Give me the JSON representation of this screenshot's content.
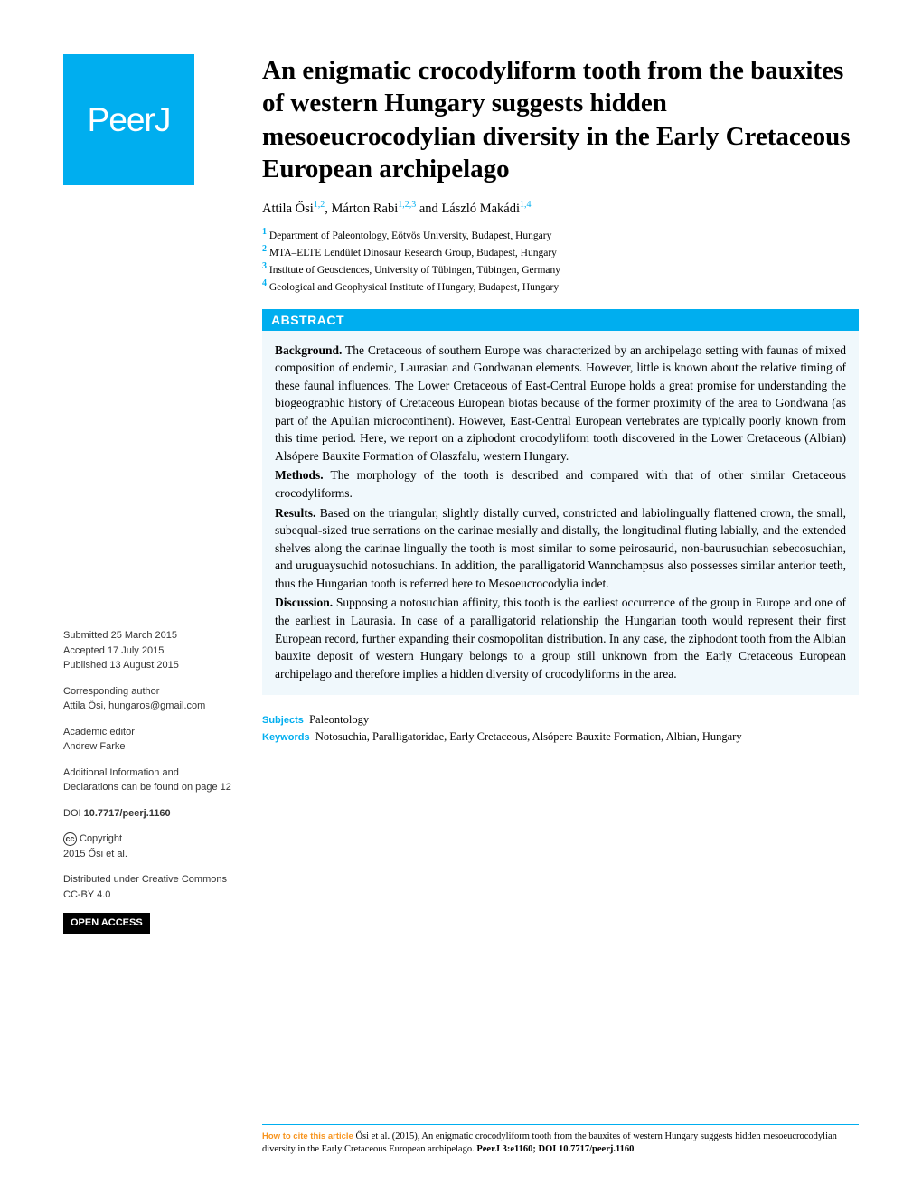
{
  "logo": "PeerJ",
  "title": "An enigmatic crocodyliform tooth from the bauxites of western Hungary suggests hidden mesoeucrocodylian diversity in the Early Cretaceous European archipelago",
  "authors": [
    {
      "name": "Attila Ősi",
      "aff": "1,2"
    },
    {
      "name": "Márton Rabi",
      "aff": "1,2,3"
    },
    {
      "name": "László Makádi",
      "aff": "1,4"
    }
  ],
  "affiliations": [
    {
      "num": "1",
      "text": "Department of Paleontology, Eötvös University, Budapest, Hungary"
    },
    {
      "num": "2",
      "text": "MTA–ELTE Lendület Dinosaur Research Group, Budapest, Hungary"
    },
    {
      "num": "3",
      "text": "Institute of Geosciences, University of Tübingen, Tübingen, Germany"
    },
    {
      "num": "4",
      "text": "Geological and Geophysical Institute of Hungary, Budapest, Hungary"
    }
  ],
  "abstract_header": "ABSTRACT",
  "abstract": {
    "background_label": "Background.",
    "background": "The Cretaceous of southern Europe was characterized by an archipelago setting with faunas of mixed composition of endemic, Laurasian and Gondwanan elements. However, little is known about the relative timing of these faunal influences. The Lower Cretaceous of East-Central Europe holds a great promise for understanding the biogeographic history of Cretaceous European biotas because of the former proximity of the area to Gondwana (as part of the Apulian microcontinent). However, East-Central European vertebrates are typically poorly known from this time period. Here, we report on a ziphodont crocodyliform tooth discovered in the Lower Cretaceous (Albian) Alsópere Bauxite Formation of Olaszfalu, western Hungary.",
    "methods_label": "Methods.",
    "methods": "The morphology of the tooth is described and compared with that of other similar Cretaceous crocodyliforms.",
    "results_label": "Results.",
    "results": "Based on the triangular, slightly distally curved, constricted and labiolingually flattened crown, the small, subequal-sized true serrations on the carinae mesially and distally, the longitudinal fluting labially, and the extended shelves along the carinae lingually the tooth is most similar to some peirosaurid, non-baurusuchian sebecosuchian, and uruguaysuchid notosuchians. In addition, the paralligatorid Wannchampsus also possesses similar anterior teeth, thus the Hungarian tooth is referred here to Mesoeucrocodylia indet.",
    "discussion_label": "Discussion.",
    "discussion": "Supposing a notosuchian affinity, this tooth is the earliest occurrence of the group in Europe and one of the earliest in Laurasia. In case of a paralligatorid relationship the Hungarian tooth would represent their first European record, further expanding their cosmopolitan distribution. In any case, the ziphodont tooth from the Albian bauxite deposit of western Hungary belongs to a group still unknown from the Early Cretaceous European archipelago and therefore implies a hidden diversity of crocodyliforms in the area."
  },
  "subjects_label": "Subjects",
  "subjects": "Paleontology",
  "keywords_label": "Keywords",
  "keywords": "Notosuchia, Paralligatoridae, Early Cretaceous, Alsópere Bauxite Formation, Albian, Hungary",
  "meta": {
    "submitted_label": "Submitted",
    "submitted": "25 March 2015",
    "accepted_label": "Accepted",
    "accepted": "17 July 2015",
    "published_label": "Published",
    "published": "13 August 2015",
    "corr_label": "Corresponding author",
    "corr": "Attila Ősi, hungaros@gmail.com",
    "editor_label": "Academic editor",
    "editor": "Andrew Farke",
    "addl": "Additional Information and Declarations can be found on page 12",
    "doi_label": "DOI",
    "doi": "10.7717/peerj.1160",
    "copyright_label": "Copyright",
    "copyright": "2015 Ősi et al.",
    "dist": "Distributed under Creative Commons CC-BY 4.0",
    "open_access": "OPEN ACCESS"
  },
  "citation": {
    "label": "How to cite this article",
    "text1": "Ősi et al. (2015), An enigmatic crocodyliform tooth from the bauxites of western Hungary suggests hidden mesoeucrocodylian diversity in the Early Cretaceous European archipelago.",
    "journal": "PeerJ",
    "text2": "3:e1160; DOI 10.7717/peerj.1160"
  },
  "colors": {
    "brand": "#00aeef",
    "orange": "#f7941e",
    "abstract_bg": "#f0f8fc"
  }
}
